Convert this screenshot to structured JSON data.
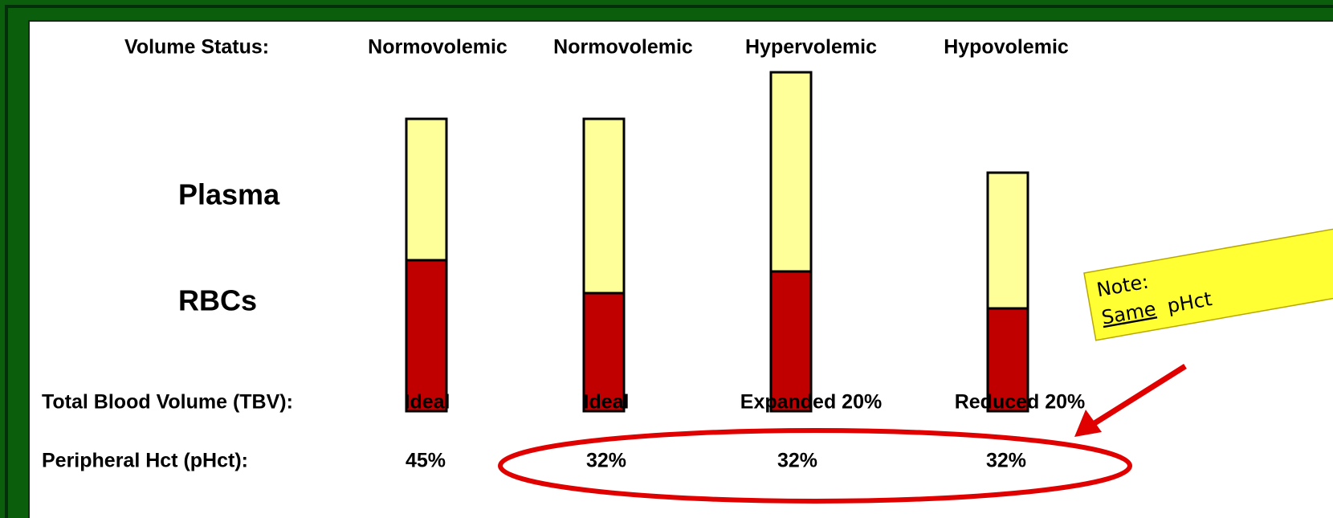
{
  "header_label": "Volume Status:",
  "row_labels": {
    "plasma": "Plasma",
    "rbcs": "RBCs",
    "tbv": "Total Blood Volume (TBV):",
    "phct": "Peripheral Hct (pHct):"
  },
  "columns": [
    {
      "status": "Normovolemic",
      "tbv": "Ideal",
      "phct": "45%"
    },
    {
      "status": "Normovolemic",
      "tbv": "Ideal",
      "phct": "32%"
    },
    {
      "status": "Hypervolemic",
      "tbv": "Expanded 20%",
      "phct": "32%"
    },
    {
      "status": "Hypovolemic",
      "tbv": "Reduced 20%",
      "phct": "32%"
    }
  ],
  "note": {
    "line1": "Note:",
    "emphasis": "Same",
    "rest": "pHct"
  }
}
